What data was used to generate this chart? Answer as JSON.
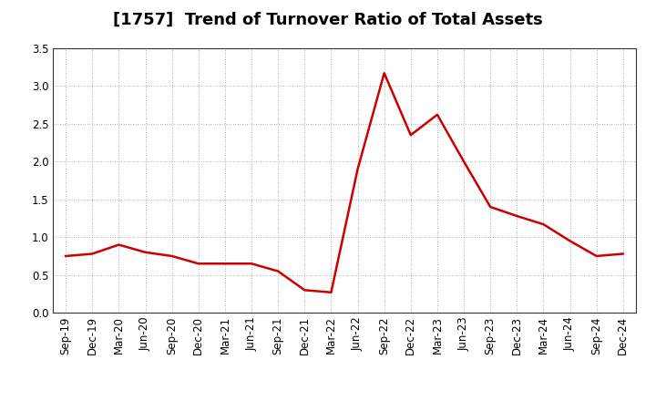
{
  "title": "[1757]  Trend of Turnover Ratio of Total Assets",
  "x_labels": [
    "Sep-19",
    "Dec-19",
    "Mar-20",
    "Jun-20",
    "Sep-20",
    "Dec-20",
    "Mar-21",
    "Jun-21",
    "Sep-21",
    "Dec-21",
    "Mar-22",
    "Jun-22",
    "Sep-22",
    "Dec-22",
    "Mar-23",
    "Jun-23",
    "Sep-23",
    "Dec-23",
    "Mar-24",
    "Jun-24",
    "Sep-24",
    "Dec-24"
  ],
  "y_values": [
    0.75,
    0.78,
    0.9,
    0.8,
    0.75,
    0.65,
    0.65,
    0.65,
    0.55,
    0.3,
    0.27,
    1.9,
    3.17,
    2.35,
    2.62,
    2.0,
    1.4,
    1.28,
    1.17,
    0.95,
    0.75,
    0.78
  ],
  "line_color": "#cc0000",
  "line_width": 1.8,
  "ylim": [
    0.0,
    3.5
  ],
  "yticks": [
    0.0,
    0.5,
    1.0,
    1.5,
    2.0,
    2.5,
    3.0,
    3.5
  ],
  "background_color": "#ffffff",
  "grid_color": "#999999",
  "title_fontsize": 13,
  "tick_fontsize": 8.5
}
